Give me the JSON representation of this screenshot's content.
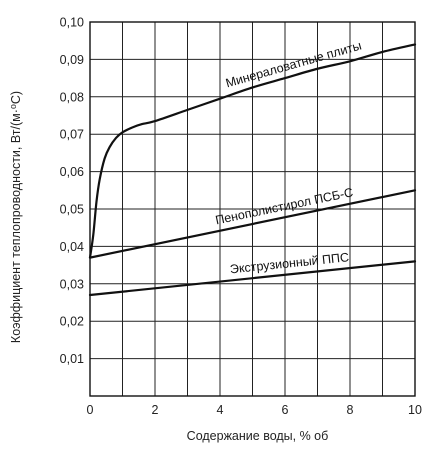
{
  "chart_data": {
    "type": "line",
    "title": "",
    "xlabel": "Содержание воды, % об",
    "ylabel": "Коэффициент теплопроводности, Вт/(м·⁰С)",
    "xlim": [
      0,
      10
    ],
    "ylim": [
      0,
      0.1
    ],
    "x_ticks": [
      "0",
      "2",
      "4",
      "6",
      "8",
      "10"
    ],
    "y_ticks": [
      "0,01",
      "0,02",
      "0,03",
      "0,04",
      "0,05",
      "0,06",
      "0,07",
      "0,08",
      "0,09",
      "0,10"
    ],
    "grid": true,
    "legend": "none",
    "series": [
      {
        "name": "Минераловатные плиты",
        "color": "#111111",
        "points": [
          [
            0,
            0.037
          ],
          [
            0.1,
            0.043
          ],
          [
            0.2,
            0.052
          ],
          [
            0.3,
            0.058
          ],
          [
            0.45,
            0.0635
          ],
          [
            0.6,
            0.0665
          ],
          [
            0.8,
            0.069
          ],
          [
            1.0,
            0.0705
          ],
          [
            1.3,
            0.0718
          ],
          [
            1.6,
            0.0727
          ],
          [
            2.0,
            0.0735
          ],
          [
            3.0,
            0.0765
          ],
          [
            4.0,
            0.0795
          ],
          [
            5.0,
            0.0825
          ],
          [
            6.0,
            0.085
          ],
          [
            7.0,
            0.0875
          ],
          [
            8.0,
            0.0895
          ],
          [
            9.0,
            0.092
          ],
          [
            10.0,
            0.094
          ]
        ]
      },
      {
        "name": "Пенополистирол ПСБ-С",
        "color": "#111111",
        "points": [
          [
            0,
            0.037
          ],
          [
            10,
            0.055
          ]
        ]
      },
      {
        "name": "Экструзионный ППС",
        "color": "#111111",
        "points": [
          [
            0,
            0.027
          ],
          [
            10,
            0.036
          ]
        ]
      }
    ]
  }
}
